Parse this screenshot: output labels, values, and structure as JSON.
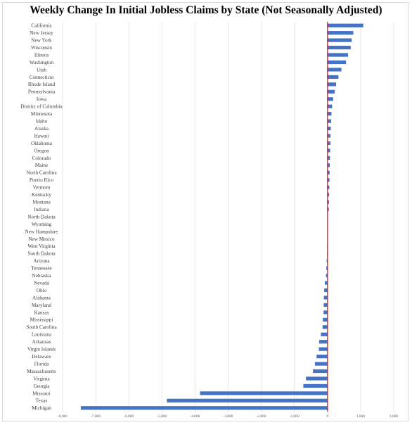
{
  "chart_data": {
    "type": "bar",
    "orientation": "horizontal",
    "title": "Weekly Change In Initial Jobless Claims by State (Not Seasonally Adjusted)",
    "xlabel": "",
    "ylabel": "",
    "xlim": [
      -8000,
      2000
    ],
    "x_ticks": [
      "-8,000",
      "-7,000",
      "-6,000",
      "-5,000",
      "-4,000",
      "-3,000",
      "-2,000",
      "-1,000",
      "0",
      "1,000",
      "2,000"
    ],
    "categories": [
      "California",
      "New Jersey",
      "New York",
      "Wisconsin",
      "Illinois",
      "Washington",
      "Utah",
      "Connecticut",
      "Rhode Island",
      "Pennsylvania",
      "Iowa",
      "District of Columbia",
      "Minnesota",
      "Idaho",
      "Alaska",
      "Hawaii",
      "Oklahoma",
      "Oregon",
      "Colorado",
      "Maine",
      "North Carolina",
      "Puerto Rico",
      "Vermont",
      "Kentucky",
      "Montana",
      "Indiana",
      "North Dakota",
      "Wyoming",
      "New Hampshire",
      "New Mexico",
      "West Virginia",
      "South Dakota",
      "Arizona",
      "Tennessee",
      "Nebraska",
      "Nevada",
      "Ohio",
      "Alabama",
      "Maryland",
      "Kansas",
      "Mississippi",
      "South Carolina",
      "Louisiana",
      "Arkansas",
      "Virgin Islands",
      "Delaware",
      "Florida",
      "Massachusetts",
      "Virginia",
      "Georgia",
      "Missouri",
      "Texas",
      "Michigan"
    ],
    "values": [
      1080,
      780,
      730,
      700,
      620,
      560,
      420,
      330,
      260,
      220,
      170,
      140,
      120,
      110,
      100,
      90,
      90,
      80,
      75,
      70,
      65,
      60,
      55,
      50,
      45,
      40,
      10,
      5,
      0,
      -5,
      -10,
      -15,
      -25,
      -35,
      -45,
      -80,
      -100,
      -110,
      -115,
      -120,
      -140,
      -150,
      -200,
      -250,
      -260,
      -330,
      -380,
      -440,
      -650,
      -730,
      -3850,
      -4850,
      -7450
    ],
    "grid": true,
    "legend": "none",
    "bar_color": "#4472c4",
    "zero_line_color": "#ff0000"
  }
}
